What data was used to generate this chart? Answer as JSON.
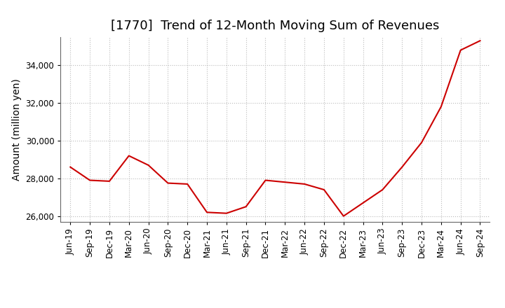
{
  "title": "[1770]  Trend of 12-Month Moving Sum of Revenues",
  "ylabel": "Amount (million yen)",
  "line_color": "#cc0000",
  "background_color": "#ffffff",
  "plot_bg_color": "#ffffff",
  "grid_color": "#bbbbbb",
  "x_labels": [
    "Jun-19",
    "Sep-19",
    "Dec-19",
    "Mar-20",
    "Jun-20",
    "Sep-20",
    "Dec-20",
    "Mar-21",
    "Jun-21",
    "Sep-21",
    "Dec-21",
    "Mar-22",
    "Jun-22",
    "Sep-22",
    "Dec-22",
    "Mar-23",
    "Jun-23",
    "Sep-23",
    "Dec-23",
    "Mar-24",
    "Jun-24",
    "Sep-24"
  ],
  "y_values": [
    28600,
    27900,
    27850,
    29200,
    28700,
    27750,
    27700,
    26200,
    26150,
    26500,
    27900,
    27800,
    27700,
    27400,
    26000,
    26700,
    27400,
    28600,
    29900,
    31800,
    34800,
    35300
  ],
  "ylim": [
    25700,
    35500
  ],
  "yticks": [
    26000,
    28000,
    30000,
    32000,
    34000
  ],
  "title_fontsize": 13,
  "axis_label_fontsize": 10,
  "tick_fontsize": 8.5
}
